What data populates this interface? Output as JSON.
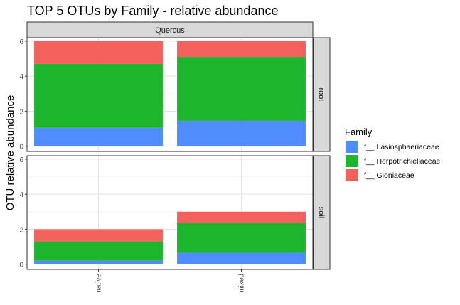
{
  "chart_data": {
    "type": "bar",
    "stacked": true,
    "title": "TOP 5 OTUs by Family - relative abundance",
    "xlabel": "",
    "ylabel": "OTU relative abundance",
    "column_facets": [
      "Quercus"
    ],
    "row_facets": [
      "root",
      "soil"
    ],
    "categories": [
      "native",
      "mixed"
    ],
    "ylim": [
      -0.3,
      6.2
    ],
    "yticks": [
      0,
      2,
      4,
      6
    ],
    "grid": true,
    "legend": {
      "title": "Family",
      "position": "right"
    },
    "series": [
      {
        "name": "f__ Lasiosphaeriaceae",
        "color": "#4F8CFF"
      },
      {
        "name": "f__ Herpotrichiellaceae",
        "color": "#1DB52E"
      },
      {
        "name": "f__ Gloniaceae",
        "color": "#F4615D"
      }
    ],
    "panels": [
      {
        "row": "root",
        "column": "Quercus",
        "values": {
          "f__ Lasiosphaeriaceae": [
            1.05,
            1.45
          ],
          "f__ Herpotrichiellaceae": [
            3.65,
            3.65
          ],
          "f__ Gloniaceae": [
            1.3,
            0.9
          ]
        }
      },
      {
        "row": "soil",
        "column": "Quercus",
        "values": {
          "f__ Lasiosphaeriaceae": [
            0.2,
            0.65
          ],
          "f__ Herpotrichiellaceae": [
            1.1,
            1.7
          ],
          "f__ Gloniaceae": [
            0.7,
            0.65
          ]
        }
      }
    ]
  }
}
